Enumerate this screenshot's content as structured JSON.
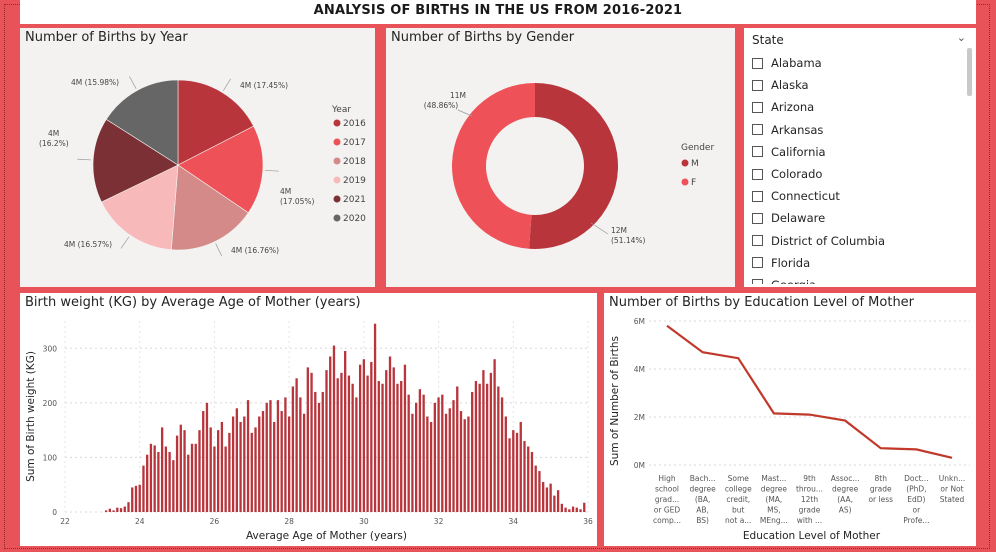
{
  "report_title": "ANALYSIS OF BIRTHS IN THE US FROM 2016-2021",
  "colors": {
    "c2016": "#b8353c",
    "c2017": "#ee5258",
    "c2018": "#d48a88",
    "c2019": "#f8b9bb",
    "c2021": "#7a3035",
    "c2020": "#666666",
    "bar": "#b8353c",
    "line": "#c0392b"
  },
  "pie_year": {
    "title": "Number of Births by Year",
    "legend_title": "Year",
    "chart_data": {
      "type": "pie",
      "title": "Number of Births by Year",
      "slices": [
        {
          "label": "2016",
          "value": 17.45,
          "label_line1": "4M (17.45%)",
          "label_line2": "",
          "color": "#b8353c"
        },
        {
          "label": "2017",
          "value": 17.05,
          "label_line1": "4M",
          "label_line2": "(17.05%)",
          "color": "#ee5258"
        },
        {
          "label": "2018",
          "value": 16.76,
          "label_line1": "4M (16.76%)",
          "label_line2": "",
          "color": "#d48a88"
        },
        {
          "label": "2019",
          "value": 16.57,
          "label_line1": "4M (16.57%)",
          "label_line2": "",
          "color": "#f8b9bb"
        },
        {
          "label": "2021",
          "value": 16.2,
          "label_line1": "4M",
          "label_line2": "(16.2%)",
          "color": "#7a3035"
        },
        {
          "label": "2020",
          "value": 15.98,
          "label_line1": "4M (15.98%)",
          "label_line2": "",
          "color": "#666666"
        }
      ]
    }
  },
  "donut_gender": {
    "title": "Number of Births by Gender",
    "legend_title": "Gender",
    "chart_data": {
      "type": "pie",
      "title": "Number of Births by Gender",
      "slices": [
        {
          "label": "M",
          "value": 51.14,
          "label_line1": "12M",
          "label_line2": "(51.14%)",
          "color": "#b8353c"
        },
        {
          "label": "F",
          "value": 48.86,
          "label_line1": "11M",
          "label_line2": "(48.86%)",
          "color": "#ee5258"
        }
      ]
    }
  },
  "slicer": {
    "title": "State",
    "chevron": "⌄",
    "items": [
      "Alabama",
      "Alaska",
      "Arizona",
      "Arkansas",
      "California",
      "Colorado",
      "Connecticut",
      "Delaware",
      "District of Columbia",
      "Florida",
      "Georgia"
    ]
  },
  "bar_weight": {
    "title": "Birth weight (KG) by Average Age of Mother (years)",
    "chart_data": {
      "type": "bar",
      "title": "Birth weight (KG) by Average Age of Mother (years)",
      "xlabel": "Average Age of Mother (years)",
      "ylabel": "Sum of Birth weight (KG)",
      "xlim": [
        22,
        36
      ],
      "ylim": [
        0,
        350
      ],
      "xticks": [
        "22",
        "24",
        "26",
        "28",
        "30",
        "32",
        "34",
        "36"
      ],
      "yticks": [
        "0",
        "100",
        "200",
        "300"
      ],
      "x_start": 23.1,
      "x_step": 0.1,
      "values": [
        3,
        6,
        3,
        8,
        7,
        10,
        18,
        45,
        48,
        50,
        85,
        105,
        125,
        122,
        110,
        155,
        120,
        110,
        95,
        140,
        160,
        150,
        105,
        125,
        125,
        150,
        185,
        200,
        155,
        120,
        150,
        165,
        120,
        145,
        175,
        190,
        165,
        175,
        205,
        145,
        155,
        175,
        185,
        200,
        205,
        165,
        205,
        185,
        210,
        175,
        230,
        245,
        210,
        180,
        265,
        255,
        220,
        200,
        220,
        260,
        285,
        305,
        245,
        255,
        295,
        250,
        235,
        210,
        270,
        280,
        250,
        275,
        345,
        240,
        235,
        260,
        285,
        265,
        235,
        240,
        270,
        215,
        180,
        200,
        225,
        215,
        175,
        165,
        200,
        210,
        215,
        180,
        190,
        205,
        230,
        185,
        170,
        175,
        220,
        240,
        235,
        260,
        235,
        255,
        280,
        230,
        210,
        175,
        135,
        150,
        145,
        165,
        130,
        120,
        110,
        85,
        75,
        55,
        45,
        52,
        30,
        40,
        15,
        8,
        5,
        10,
        8,
        5,
        17
      ]
    }
  },
  "line_edu": {
    "title": "Number of Births by Education Level of Mother",
    "chart_data": {
      "type": "line",
      "title": "Number of Births by Education Level of Mother",
      "xlabel": "Education Level of Mother",
      "ylabel": "Sum of Number of Births",
      "ylim": [
        0,
        6
      ],
      "yticks": [
        "0M",
        "2M",
        "4M",
        "6M"
      ],
      "categories": [
        [
          "High",
          "school",
          "grad...",
          "or GED",
          "comp..."
        ],
        [
          "Bach...",
          "degree",
          "(BA,",
          "AB,",
          "BS)"
        ],
        [
          "Some",
          "college",
          "credit,",
          "but",
          "not a..."
        ],
        [
          "Mast...",
          "degree",
          "(MA,",
          "MS,",
          "MEng..."
        ],
        [
          "9th",
          "throu...",
          "12th",
          "grade",
          "with ..."
        ],
        [
          "Assoc...",
          "degree",
          "(AA,",
          "AS)"
        ],
        [
          "8th",
          "grade",
          "or less"
        ],
        [
          "Doct...",
          "(PhD,",
          "EdD)",
          "or",
          "Profe..."
        ],
        [
          "Unkn...",
          "or Not",
          "Stated"
        ]
      ],
      "values": [
        5.8,
        4.7,
        4.45,
        2.15,
        2.1,
        1.85,
        0.7,
        0.65,
        0.3
      ]
    }
  }
}
